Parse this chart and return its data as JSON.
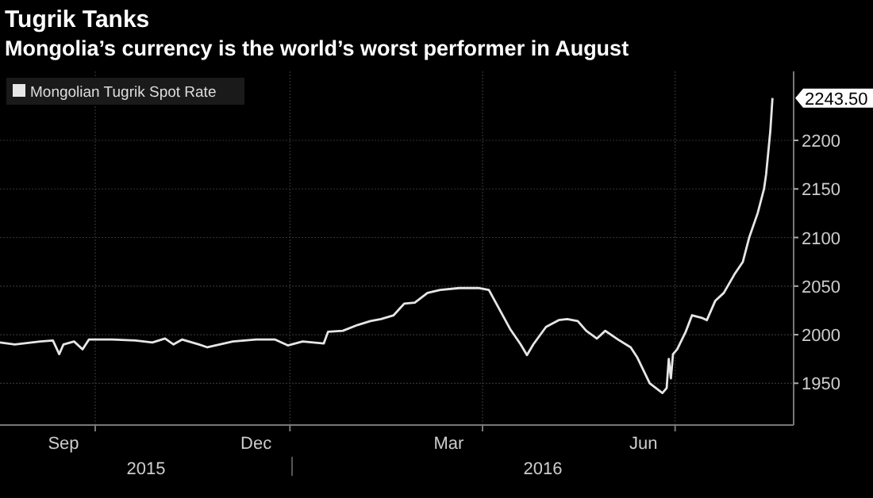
{
  "chart_data": {
    "type": "line",
    "title": "Tugrik Tanks",
    "subtitle": "Mongolia’s currency is the world’s worst performer in August",
    "x": [
      "2015-08-16",
      "2015-08-23",
      "2015-09-04",
      "2015-09-10",
      "2015-09-13",
      "2015-09-15",
      "2015-09-20",
      "2015-09-24",
      "2015-09-27",
      "2015-10-08",
      "2015-10-19",
      "2015-10-27",
      "2015-11-02",
      "2015-11-06",
      "2015-11-10",
      "2015-11-18",
      "2015-11-22",
      "2015-12-04",
      "2015-12-15",
      "2015-12-24",
      "2015-12-30",
      "2016-01-06",
      "2016-01-16",
      "2016-01-18",
      "2016-01-25",
      "2016-02-01",
      "2016-02-07",
      "2016-02-12",
      "2016-02-18",
      "2016-02-23",
      "2016-02-28",
      "2016-03-05",
      "2016-03-11",
      "2016-03-20",
      "2016-03-29",
      "2016-04-03",
      "2016-04-08",
      "2016-04-13",
      "2016-04-18",
      "2016-04-21",
      "2016-04-24",
      "2016-04-30",
      "2016-05-06",
      "2016-05-10",
      "2016-05-15",
      "2016-05-19",
      "2016-05-24",
      "2016-05-28",
      "2016-06-03",
      "2016-06-09",
      "2016-06-12",
      "2016-06-18",
      "2016-06-24",
      "2016-06-26",
      "2016-06-27",
      "2016-06-28",
      "2016-06-29",
      "2016-07-01",
      "2016-07-05",
      "2016-07-08",
      "2016-07-13",
      "2016-07-15",
      "2016-07-19",
      "2016-07-23",
      "2016-07-28",
      "2016-08-01",
      "2016-08-04",
      "2016-08-08",
      "2016-08-11",
      "2016-08-12",
      "2016-08-14",
      "2016-08-15"
    ],
    "series": [
      {
        "name": "Mongolian Tugrik Spot Rate",
        "color": "#e6e6e6",
        "values": [
          1992,
          1990,
          1993,
          1994,
          1980,
          1990,
          1993,
          1985,
          1995,
          1995,
          1994,
          1992,
          1996,
          1990,
          1995,
          1990,
          1987,
          1993,
          1995,
          1995,
          1989,
          1993,
          1991,
          2003,
          2004,
          2010,
          2014,
          2016,
          2020,
          2032,
          2033,
          2043,
          2046,
          2048,
          2048,
          2046,
          2026,
          2006,
          1990,
          1979,
          1990,
          2008,
          2015,
          2016,
          2014,
          2004,
          1996,
          2004,
          1995,
          1987,
          1977,
          1950,
          1940,
          1945,
          1975,
          1955,
          1980,
          1985,
          2003,
          2020,
          2017,
          2015,
          2035,
          2043,
          2062,
          2075,
          2100,
          2125,
          2150,
          2165,
          2210,
          2243.5
        ]
      }
    ],
    "xlim": [
      "2015-08-16",
      "2016-08-25"
    ],
    "xticks": [
      {
        "value": "2015-09-15",
        "label": "Sep"
      },
      {
        "value": "2015-12-15",
        "label": "Dec"
      },
      {
        "value": "2016-03-15",
        "label": "Mar"
      },
      {
        "value": "2016-06-15",
        "label": "Jun"
      },
      {
        "value": "2015-09-30",
        "label": null
      },
      {
        "value": "2015-12-31",
        "label": null
      },
      {
        "value": "2016-03-31",
        "label": null
      },
      {
        "value": "2016-06-30",
        "label": null
      }
    ],
    "ylim": [
      1907,
      2271
    ],
    "yticks": [
      1950,
      2000,
      2050,
      2100,
      2150,
      2200
    ],
    "annotations": [
      {
        "text": "2243.50",
        "x": "2016-08-15",
        "y": 2243.5
      },
      "2015",
      "2016"
    ],
    "grid": true,
    "legend": "top left"
  }
}
